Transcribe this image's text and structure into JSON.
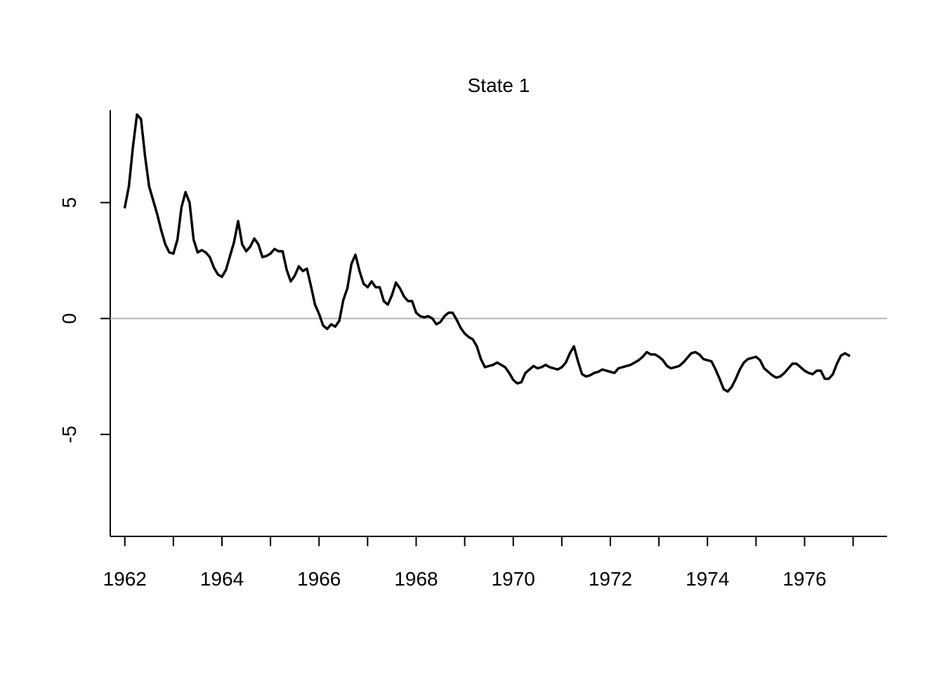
{
  "chart_data": {
    "type": "line",
    "title": "State 1",
    "xlabel": "",
    "ylabel": "",
    "xlim": [
      1961.7,
      1977.7
    ],
    "ylim": [
      -9.4,
      9.5
    ],
    "x_ticks": [
      1962,
      1963,
      1964,
      1965,
      1966,
      1967,
      1968,
      1969,
      1970,
      1971,
      1972,
      1973,
      1974,
      1975,
      1976,
      1977
    ],
    "x_tick_labels": [
      "1962",
      "",
      "1964",
      "",
      "1966",
      "",
      "1968",
      "",
      "1970",
      "",
      "1972",
      "",
      "1974",
      "",
      "1976",
      ""
    ],
    "y_ticks": [
      5,
      0,
      -5
    ],
    "y_tick_labels": [
      "5",
      "0",
      "-5"
    ],
    "reference_line": {
      "y": 0,
      "color": "#b3b3b3"
    },
    "grid": false,
    "series": [
      {
        "color": "#000000",
        "x": [
          "1962-01",
          "1962-02",
          "1962-03",
          "1962-04",
          "1962-05",
          "1962-06",
          "1962-07",
          "1962-08",
          "1962-09",
          "1962-10",
          "1962-11",
          "1962-12",
          "1963-01",
          "1963-02",
          "1963-03",
          "1963-04",
          "1963-05",
          "1963-06",
          "1963-07",
          "1963-08",
          "1963-09",
          "1963-10",
          "1963-11",
          "1963-12",
          "1964-01",
          "1964-02",
          "1964-03",
          "1964-04",
          "1964-05",
          "1964-06",
          "1964-07",
          "1964-08",
          "1964-09",
          "1964-10",
          "1964-11",
          "1964-12",
          "1965-01",
          "1965-02",
          "1965-03",
          "1965-04",
          "1965-05",
          "1965-06",
          "1965-07",
          "1965-08",
          "1965-09",
          "1965-10",
          "1965-11",
          "1965-12",
          "1966-01",
          "1966-02",
          "1966-03",
          "1966-04",
          "1966-05",
          "1966-06",
          "1966-07",
          "1966-08",
          "1966-09",
          "1966-10",
          "1966-11",
          "1966-12",
          "1967-01",
          "1967-02",
          "1967-03",
          "1967-04",
          "1967-05",
          "1967-06",
          "1967-07",
          "1967-08",
          "1967-09",
          "1967-10",
          "1967-11",
          "1967-12",
          "1968-01",
          "1968-02",
          "1968-03",
          "1968-04",
          "1968-05",
          "1968-06",
          "1968-07",
          "1968-08",
          "1968-09",
          "1968-10",
          "1968-11",
          "1968-12",
          "1969-01",
          "1969-02",
          "1969-03",
          "1969-04",
          "1969-05",
          "1969-06",
          "1969-07",
          "1969-08",
          "1969-09",
          "1969-10",
          "1969-11",
          "1969-12",
          "1970-01",
          "1970-02",
          "1970-03",
          "1970-04",
          "1970-05",
          "1970-06",
          "1970-07",
          "1970-08",
          "1970-09",
          "1970-10",
          "1970-11",
          "1970-12",
          "1971-01",
          "1971-02",
          "1971-03",
          "1971-04",
          "1971-05",
          "1971-06",
          "1971-07",
          "1971-08",
          "1971-09",
          "1971-10",
          "1971-11",
          "1971-12",
          "1972-01",
          "1972-02",
          "1972-03",
          "1972-04",
          "1972-05",
          "1972-06",
          "1972-07",
          "1972-08",
          "1972-09",
          "1972-10",
          "1972-11",
          "1972-12",
          "1973-01",
          "1973-02",
          "1973-03",
          "1973-04",
          "1973-05",
          "1973-06",
          "1973-07",
          "1973-08",
          "1973-09",
          "1973-10",
          "1973-11",
          "1973-12",
          "1974-01",
          "1974-02",
          "1974-03",
          "1974-04",
          "1974-05",
          "1974-06",
          "1974-07",
          "1974-08",
          "1974-09",
          "1974-10",
          "1974-11",
          "1974-12",
          "1975-01",
          "1975-02",
          "1975-03",
          "1975-04",
          "1975-05",
          "1975-06",
          "1975-07",
          "1975-08",
          "1975-09",
          "1975-10",
          "1975-11",
          "1975-12",
          "1976-01",
          "1976-02",
          "1976-03",
          "1976-04",
          "1976-05",
          "1976-06",
          "1976-07",
          "1976-08",
          "1976-09",
          "1976-10",
          "1976-11",
          "1976-12"
        ],
        "y": [
          4.8,
          5.7,
          7.4,
          8.8,
          8.6,
          7.0,
          5.7,
          5.1,
          4.5,
          3.8,
          3.2,
          2.85,
          2.8,
          3.4,
          4.8,
          5.45,
          5.0,
          3.4,
          2.85,
          2.95,
          2.85,
          2.65,
          2.2,
          1.9,
          1.8,
          2.1,
          2.7,
          3.3,
          4.2,
          3.2,
          2.9,
          3.1,
          3.45,
          3.2,
          2.65,
          2.7,
          2.8,
          3.0,
          2.9,
          2.9,
          2.1,
          1.6,
          1.85,
          2.25,
          2.05,
          2.15,
          1.4,
          0.6,
          0.2,
          -0.3,
          -0.45,
          -0.25,
          -0.35,
          -0.1,
          0.8,
          1.3,
          2.35,
          2.75,
          2.05,
          1.5,
          1.35,
          1.6,
          1.35,
          1.35,
          0.75,
          0.6,
          1.0,
          1.55,
          1.3,
          0.95,
          0.75,
          0.75,
          0.25,
          0.1,
          0.05,
          0.1,
          0.0,
          -0.25,
          -0.15,
          0.1,
          0.25,
          0.25,
          -0.05,
          -0.4,
          -0.65,
          -0.8,
          -0.9,
          -1.2,
          -1.75,
          -2.1,
          -2.05,
          -2.0,
          -1.9,
          -2.0,
          -2.1,
          -2.35,
          -2.65,
          -2.8,
          -2.75,
          -2.35,
          -2.2,
          -2.05,
          -2.15,
          -2.1,
          -2.0,
          -2.1,
          -2.15,
          -2.2,
          -2.1,
          -1.9,
          -1.5,
          -1.2,
          -1.85,
          -2.4,
          -2.5,
          -2.45,
          -2.35,
          -2.3,
          -2.2,
          -2.25,
          -2.3,
          -2.35,
          -2.15,
          -2.1,
          -2.05,
          -2.0,
          -1.9,
          -1.8,
          -1.65,
          -1.45,
          -1.55,
          -1.55,
          -1.65,
          -1.8,
          -2.05,
          -2.15,
          -2.1,
          -2.05,
          -1.9,
          -1.7,
          -1.5,
          -1.45,
          -1.55,
          -1.75,
          -1.8,
          -1.85,
          -2.2,
          -2.6,
          -3.05,
          -3.15,
          -2.95,
          -2.6,
          -2.2,
          -1.9,
          -1.75,
          -1.7,
          -1.65,
          -1.8,
          -2.15,
          -2.3,
          -2.45,
          -2.55,
          -2.5,
          -2.35,
          -2.15,
          -1.95,
          -1.95,
          -2.1,
          -2.25,
          -2.35,
          -2.4,
          -2.25,
          -2.25,
          -2.6,
          -2.6,
          -2.4,
          -1.95,
          -1.6,
          -1.5,
          -1.6
        ]
      }
    ]
  }
}
